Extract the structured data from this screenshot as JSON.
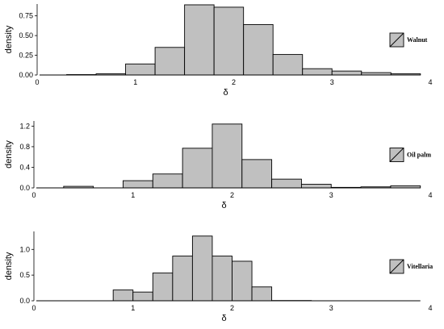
{
  "chart_data": [
    {
      "type": "bar",
      "subtype": "histogram",
      "title": "",
      "xlabel": "δ",
      "ylabel": "density",
      "xlim": [
        0,
        4
      ],
      "ylim": [
        0,
        0.9
      ],
      "xticks": [
        0,
        1,
        2,
        3,
        4
      ],
      "yticks": [
        0.0,
        0.25,
        0.5,
        0.75
      ],
      "ytick_labels": [
        "0.00",
        "0.25",
        "0.50",
        "0.75"
      ],
      "grid": false,
      "legend_position": "right",
      "bar_color": "#c0c0c0",
      "edge_color": "#000000",
      "series": [
        {
          "name": "Walnut",
          "bins": [
            {
              "x0": 0.0,
              "x1": 0.3,
              "value": 0.0
            },
            {
              "x0": 0.3,
              "x1": 0.6,
              "value": 0.005
            },
            {
              "x0": 0.6,
              "x1": 0.9,
              "value": 0.015
            },
            {
              "x0": 0.9,
              "x1": 1.2,
              "value": 0.14
            },
            {
              "x0": 1.2,
              "x1": 1.5,
              "value": 0.35
            },
            {
              "x0": 1.5,
              "x1": 1.8,
              "value": 0.89
            },
            {
              "x0": 1.8,
              "x1": 2.1,
              "value": 0.86
            },
            {
              "x0": 2.1,
              "x1": 2.4,
              "value": 0.64
            },
            {
              "x0": 2.4,
              "x1": 2.7,
              "value": 0.26
            },
            {
              "x0": 2.7,
              "x1": 3.0,
              "value": 0.08
            },
            {
              "x0": 3.0,
              "x1": 3.3,
              "value": 0.05
            },
            {
              "x0": 3.3,
              "x1": 3.6,
              "value": 0.03
            },
            {
              "x0": 3.6,
              "x1": 3.9,
              "value": 0.015
            }
          ]
        }
      ]
    },
    {
      "type": "bar",
      "subtype": "histogram",
      "title": "",
      "xlabel": "δ",
      "ylabel": "density",
      "xlim": [
        0,
        4
      ],
      "ylim": [
        0,
        1.3
      ],
      "xticks": [
        0,
        1,
        2,
        3,
        4
      ],
      "yticks": [
        0.0,
        0.4,
        0.8,
        1.2
      ],
      "ytick_labels": [
        "0.0",
        "0.4",
        "0.8",
        "1.2"
      ],
      "grid": false,
      "legend_position": "right",
      "bar_color": "#c0c0c0",
      "edge_color": "#000000",
      "series": [
        {
          "name": "Oil palm",
          "bins": [
            {
              "x0": 0.0,
              "x1": 0.3,
              "value": 0.0
            },
            {
              "x0": 0.3,
              "x1": 0.6,
              "value": 0.03
            },
            {
              "x0": 0.6,
              "x1": 0.9,
              "value": 0.0
            },
            {
              "x0": 0.9,
              "x1": 1.2,
              "value": 0.14
            },
            {
              "x0": 1.2,
              "x1": 1.5,
              "value": 0.27
            },
            {
              "x0": 1.5,
              "x1": 1.8,
              "value": 0.77
            },
            {
              "x0": 1.8,
              "x1": 2.1,
              "value": 1.24
            },
            {
              "x0": 2.1,
              "x1": 2.4,
              "value": 0.55
            },
            {
              "x0": 2.4,
              "x1": 2.7,
              "value": 0.17
            },
            {
              "x0": 2.7,
              "x1": 3.0,
              "value": 0.07
            },
            {
              "x0": 3.0,
              "x1": 3.3,
              "value": 0.01
            },
            {
              "x0": 3.3,
              "x1": 3.6,
              "value": 0.02
            },
            {
              "x0": 3.6,
              "x1": 3.9,
              "value": 0.04
            }
          ]
        }
      ]
    },
    {
      "type": "bar",
      "subtype": "histogram",
      "title": "",
      "xlabel": "δ",
      "ylabel": "density",
      "xlim": [
        0,
        4
      ],
      "ylim": [
        0,
        1.35
      ],
      "xticks": [
        0,
        1,
        2,
        3,
        4
      ],
      "yticks": [
        0.0,
        0.5,
        1.0
      ],
      "ytick_labels": [
        "0.0",
        "0.5",
        "1.0"
      ],
      "grid": false,
      "legend_position": "right",
      "bar_color": "#c0c0c0",
      "edge_color": "#000000",
      "series": [
        {
          "name": "Vitellaria",
          "bins": [
            {
              "x0": 0.0,
              "x1": 0.3,
              "value": 0.0
            },
            {
              "x0": 0.3,
              "x1": 0.6,
              "value": 0.0
            },
            {
              "x0": 0.6,
              "x1": 0.8,
              "value": 0.0
            },
            {
              "x0": 0.8,
              "x1": 1.0,
              "value": 0.21
            },
            {
              "x0": 1.0,
              "x1": 1.2,
              "value": 0.17
            },
            {
              "x0": 1.2,
              "x1": 1.4,
              "value": 0.54
            },
            {
              "x0": 1.4,
              "x1": 1.6,
              "value": 0.87
            },
            {
              "x0": 1.6,
              "x1": 1.8,
              "value": 1.26
            },
            {
              "x0": 1.8,
              "x1": 2.0,
              "value": 0.87
            },
            {
              "x0": 2.0,
              "x1": 2.2,
              "value": 0.77
            },
            {
              "x0": 2.2,
              "x1": 2.4,
              "value": 0.27
            },
            {
              "x0": 2.4,
              "x1": 2.8,
              "value": 0.005
            }
          ]
        }
      ]
    }
  ]
}
